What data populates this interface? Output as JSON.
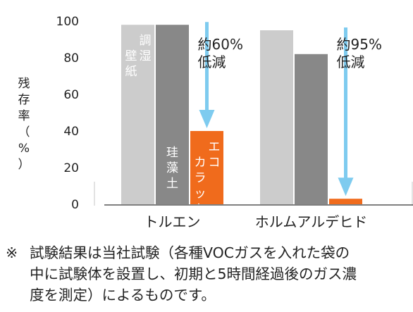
{
  "chart_data": {
    "type": "bar",
    "categories": [
      "トルエン",
      "ホルムアルデヒド"
    ],
    "series": [
      {
        "name": "調湿壁紙",
        "values": [
          98,
          95
        ],
        "color": "#cccccc"
      },
      {
        "name": "珪藻土",
        "values": [
          98,
          82
        ],
        "color": "#888888"
      },
      {
        "name": "エコカラット",
        "values": [
          40,
          3
        ],
        "color": "#f06b1c"
      }
    ],
    "ylim": [
      0,
      100
    ],
    "yticks": [
      0,
      20,
      40,
      60,
      80,
      100
    ],
    "ylabel": "残存率（%）",
    "grid": false,
    "series_labels_inside_bars": true,
    "annotations": [
      {
        "category": "トルエン",
        "lines": [
          "約60%",
          "低減"
        ]
      },
      {
        "category": "ホルムアルデヒド",
        "lines": [
          "約95%",
          "低減"
        ]
      }
    ],
    "arrow_color": "#7ecbef"
  },
  "ylabel_chars": [
    "残",
    "存",
    "率",
    "（",
    "%",
    "）"
  ],
  "note": {
    "mark": "※",
    "lines": [
      "試験結果は当社試験（各種VOCガスを入れた袋の",
      "中に試験体を設置し、初期と5時間経過後のガス濃",
      "度を測定）によるものです。"
    ]
  }
}
